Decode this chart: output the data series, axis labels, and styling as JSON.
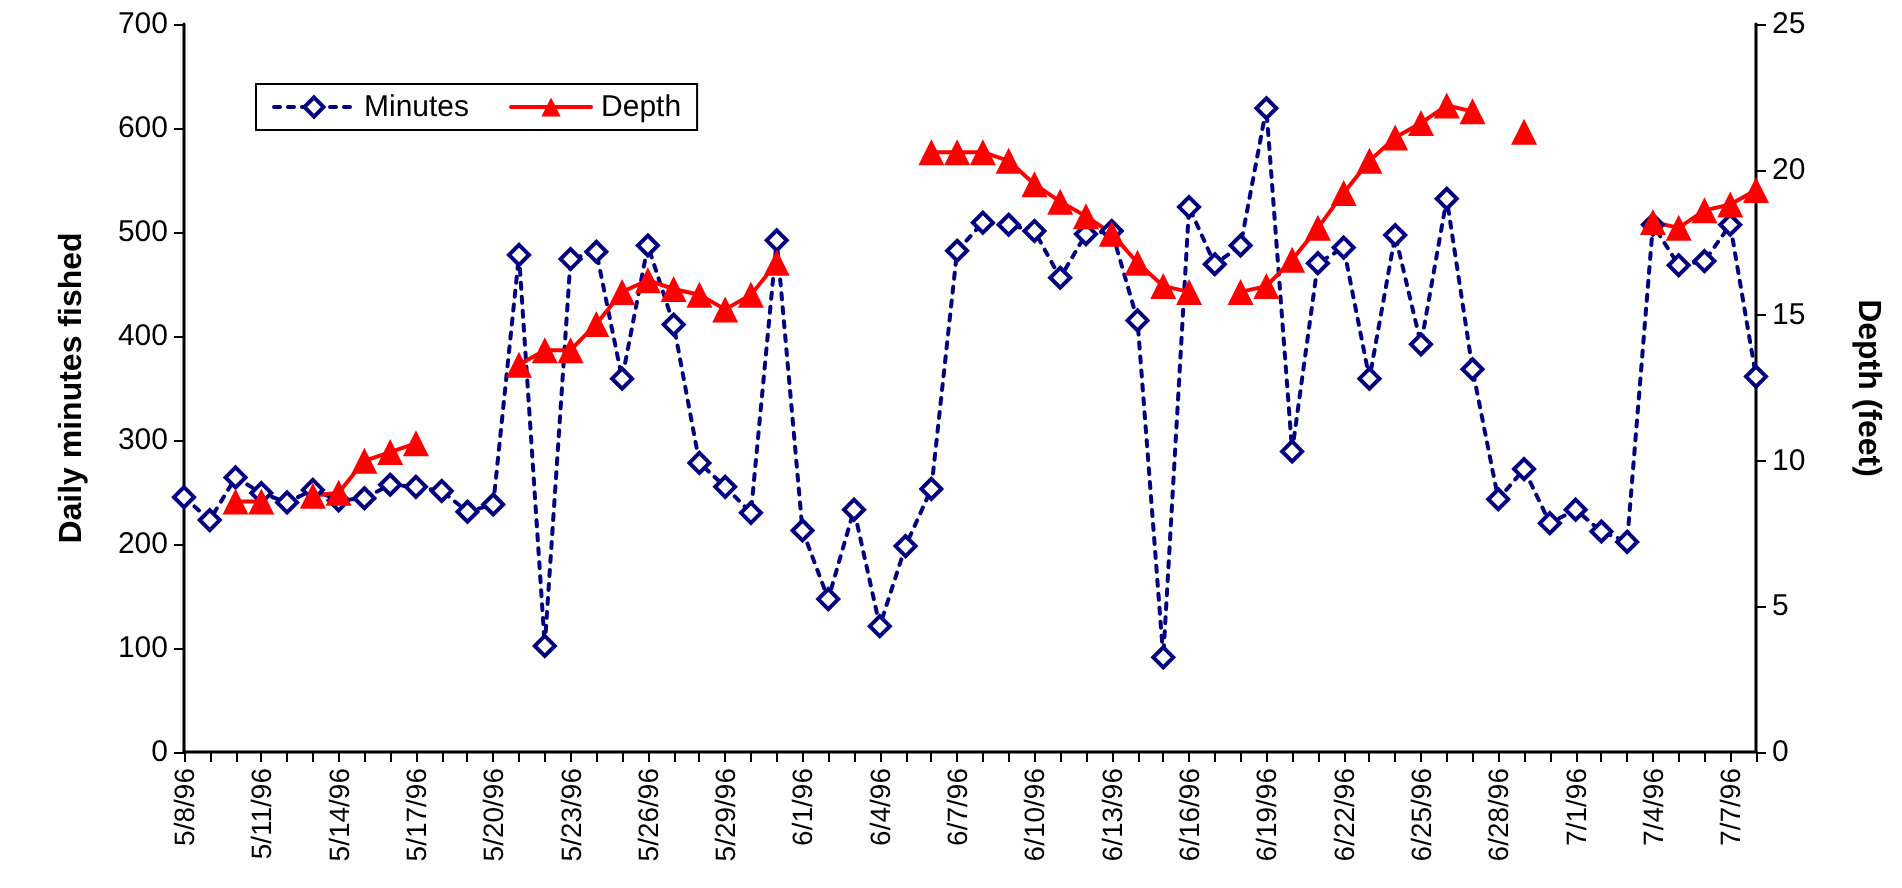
{
  "chart_data": {
    "type": "line",
    "xlabel": null,
    "ylabel": "Daily minutes fished",
    "y2label": "Depth (feet)",
    "categories": [
      "5/8/96",
      null,
      null,
      "5/11/96",
      null,
      null,
      "5/14/96",
      null,
      null,
      "5/17/96",
      null,
      null,
      "5/20/96",
      null,
      null,
      "5/23/96",
      null,
      null,
      "5/26/96",
      null,
      null,
      "5/29/96",
      null,
      null,
      "6/1/96",
      null,
      null,
      "6/4/96",
      null,
      null,
      "6/7/96",
      null,
      null,
      "6/10/96",
      null,
      null,
      "6/13/96",
      null,
      null,
      "6/16/96",
      null,
      null,
      "6/19/96",
      null,
      null,
      "6/22/96",
      null,
      null,
      "6/25/96",
      null,
      null,
      "6/28/96",
      null,
      null,
      "7/1/96",
      null,
      null,
      "7/4/96",
      null,
      null,
      "7/7/96",
      null
    ],
    "series": [
      {
        "name": "Minutes",
        "color": "#000080",
        "marker": "diamond",
        "line_style": "dotted",
        "values": [
          245,
          223,
          264,
          249,
          240,
          252,
          242,
          244,
          257,
          255,
          251,
          231,
          238,
          478,
          102,
          474,
          481,
          359,
          487,
          411,
          278,
          255,
          230,
          492,
          213,
          147,
          233,
          121,
          198,
          253,
          482,
          509,
          507,
          501,
          456,
          498,
          501,
          415,
          91,
          524,
          469,
          487,
          619,
          289,
          470,
          485,
          359,
          497,
          392,
          532,
          368,
          243,
          272,
          220,
          233,
          212,
          202,
          507,
          468,
          472,
          507,
          361
        ]
      },
      {
        "name": "Depth",
        "color": "#ff0000",
        "marker": "triangle",
        "line_style": "solid",
        "axis": "y2",
        "values": [
          null,
          null,
          8.6,
          8.6,
          null,
          8.8,
          8.9,
          10.0,
          10.3,
          10.6,
          null,
          null,
          null,
          13.3,
          13.8,
          13.8,
          14.7,
          15.8,
          16.2,
          15.9,
          15.7,
          15.2,
          15.7,
          16.8,
          null,
          null,
          null,
          null,
          null,
          20.6,
          20.6,
          20.6,
          20.3,
          19.5,
          18.9,
          18.4,
          17.8,
          16.8,
          16.0,
          15.8,
          null,
          15.8,
          16.0,
          16.9,
          18.0,
          19.2,
          20.3,
          21.1,
          21.6,
          22.2,
          22.0,
          null,
          21.3,
          null,
          null,
          null,
          null,
          18.2,
          18.0,
          18.6,
          18.8,
          19.3
        ]
      }
    ],
    "ylim": [
      0,
      700
    ],
    "yticks": [
      0,
      100,
      200,
      300,
      400,
      500,
      600,
      700
    ],
    "y2lim": [
      0,
      25
    ],
    "y2ticks": [
      0,
      5,
      10,
      15,
      20,
      25
    ],
    "grid": false,
    "legend": "top left"
  }
}
